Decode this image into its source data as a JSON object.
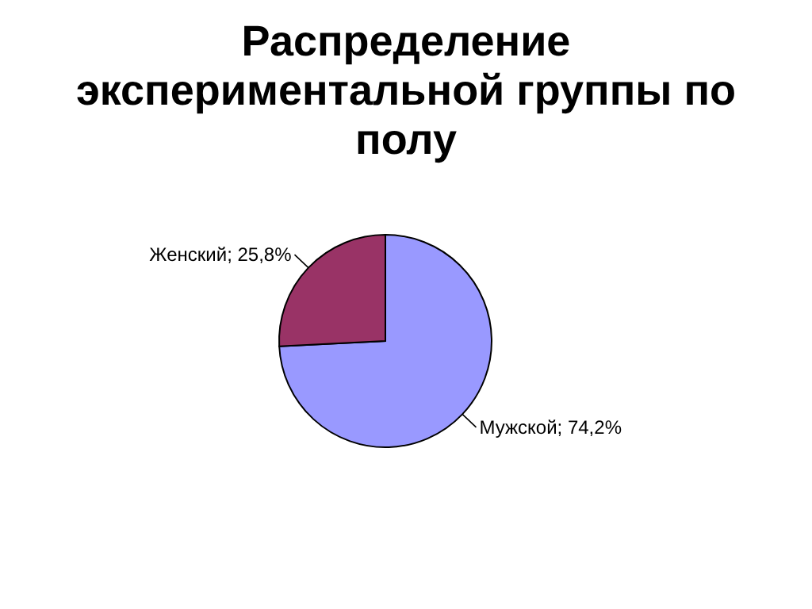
{
  "chart_data": {
    "type": "pie",
    "title": "Распределение экспериментальной группы по полу",
    "categories": [
      "Мужской",
      "Женский"
    ],
    "values": [
      74.2,
      25.8
    ],
    "colors": [
      "#9999ff",
      "#993366"
    ],
    "value_labels": [
      "74,2%",
      "25,8%"
    ]
  }
}
